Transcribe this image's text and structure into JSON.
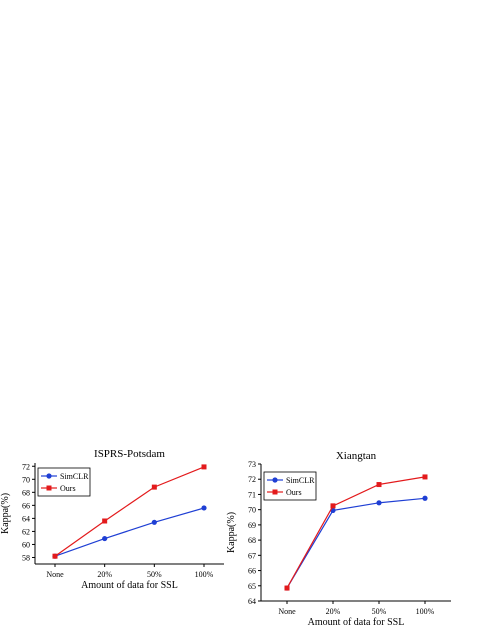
{
  "chart_data": [
    {
      "type": "line",
      "title": "ISPRS-Potsdam",
      "xlabel": "Amount of data for SSL",
      "ylabel": "Kappa(%)",
      "categories": [
        "None",
        "20%",
        "50%",
        "100%"
      ],
      "ylim": [
        57,
        72.5
      ],
      "yticks": [
        58,
        60,
        62,
        64,
        66,
        68,
        70,
        72
      ],
      "grid": false,
      "legend_position": "top-left",
      "series": [
        {
          "name": "SimCLR",
          "color": "#1f3fd4",
          "marker": "circle",
          "values": [
            58.2,
            60.9,
            63.4,
            65.6
          ]
        },
        {
          "name": "Ours",
          "color": "#e31a1c",
          "marker": "square",
          "values": [
            58.2,
            63.6,
            68.8,
            71.9
          ]
        }
      ]
    },
    {
      "type": "line",
      "title": "Xiangtan",
      "xlabel": "Amount of data for SSL",
      "ylabel": "Kappa(%)",
      "categories": [
        "None",
        "20%",
        "50%",
        "100%"
      ],
      "ylim": [
        64,
        73
      ],
      "yticks": [
        64,
        65,
        66,
        67,
        68,
        69,
        70,
        71,
        72,
        73
      ],
      "grid": false,
      "legend_position": "top-left",
      "series": [
        {
          "name": "SimCLR",
          "color": "#1f3fd4",
          "marker": "circle",
          "values": [
            64.85,
            69.95,
            70.45,
            70.75
          ]
        },
        {
          "name": "Ours",
          "color": "#e31a1c",
          "marker": "square",
          "values": [
            64.85,
            70.25,
            71.65,
            72.15
          ]
        }
      ]
    }
  ]
}
